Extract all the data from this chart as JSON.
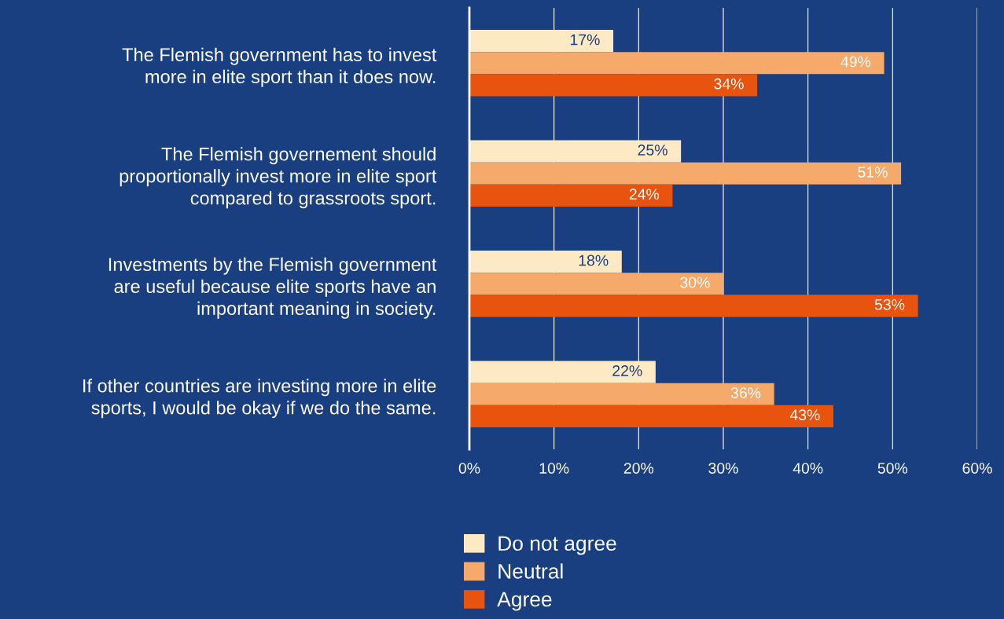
{
  "chart_data": {
    "type": "bar",
    "orientation": "horizontal",
    "categories": [
      "The Flemish government has to invest\nmore in elite sport than it does now.",
      "The Flemish governement should\nproportionally invest more in elite sport\ncompared to grassroots sport.",
      "Investments by the Flemish government\nare useful because elite sports have an\nimportant meaning in society.",
      "If other countries are investing more in elite\nsports, I would be okay if we do the same."
    ],
    "series": [
      {
        "name": "Do not agree",
        "color": "#fde9c4",
        "values": [
          17,
          25,
          18,
          22
        ],
        "value_labels": [
          "17%",
          "25%",
          "18%",
          "22%"
        ]
      },
      {
        "name": "Neutral",
        "color": "#f5a96b",
        "values": [
          49,
          51,
          30,
          36
        ],
        "value_labels": [
          "49%",
          "51%",
          "30%",
          "36%"
        ]
      },
      {
        "name": "Agree",
        "color": "#e8530e",
        "values": [
          34,
          24,
          53,
          43
        ],
        "value_labels": [
          "34%",
          "24%",
          "53%",
          "43%"
        ]
      }
    ],
    "xlim": [
      0,
      60
    ],
    "xticks": [
      {
        "value": 0,
        "label": "0%"
      },
      {
        "value": 10,
        "label": "10%"
      },
      {
        "value": 20,
        "label": "20%"
      },
      {
        "value": 30,
        "label": "30%"
      },
      {
        "value": 40,
        "label": "40%"
      },
      {
        "value": 50,
        "label": "50%"
      },
      {
        "value": 60,
        "label": "60%"
      }
    ],
    "grid": "x",
    "legend": "bottom"
  }
}
